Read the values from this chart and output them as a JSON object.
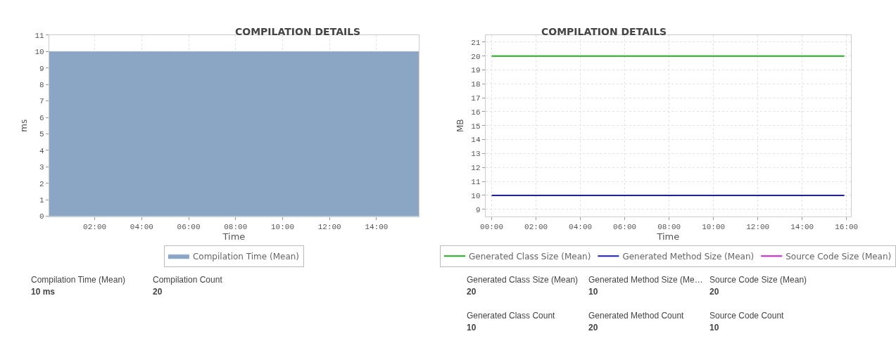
{
  "chart_data": [
    {
      "type": "area",
      "title": "COMPILATION DETAILS",
      "xlabel": "Time",
      "ylabel": "ms",
      "x": [
        0.06,
        15.8
      ],
      "series": [
        {
          "name": "Compilation Time (Mean)",
          "color": "#8ba6c4",
          "values": [
            10,
            10
          ]
        }
      ],
      "xlim": [
        0.06,
        15.8
      ],
      "xticks": [
        {
          "value": 2,
          "label": "02:00"
        },
        {
          "value": 4,
          "label": "04:00"
        },
        {
          "value": 6,
          "label": "06:00"
        },
        {
          "value": 8,
          "label": "08:00"
        },
        {
          "value": 10,
          "label": "10:00"
        },
        {
          "value": 12,
          "label": "12:00"
        },
        {
          "value": 14,
          "label": "14:00"
        }
      ],
      "ylim": [
        0,
        11
      ],
      "yticks": [
        0,
        1,
        2,
        3,
        4,
        5,
        6,
        7,
        8,
        9,
        10,
        11
      ],
      "grid": true,
      "legend": "bottom",
      "annotations": [
        "Compilation Time (Mean)",
        "10 ms",
        "Compilation Count",
        "20"
      ]
    },
    {
      "type": "line",
      "title": "COMPILATION DETAILS",
      "xlabel": "Time",
      "ylabel": "MB",
      "x": [
        0,
        15.9
      ],
      "series": [
        {
          "name": "Generated Class Size (Mean)",
          "color": "#22aa22",
          "values": [
            20,
            20
          ]
        },
        {
          "name": "Generated Method Size (Mean)",
          "color": "#1a1acc",
          "values": [
            10,
            10
          ]
        },
        {
          "name": "Source Code Size (Mean)",
          "color": "#cc22cc",
          "values": [
            null,
            null
          ]
        }
      ],
      "xlim": [
        -0.28,
        16.2
      ],
      "xticks": [
        {
          "value": 0,
          "label": "00:00"
        },
        {
          "value": 2,
          "label": "02:00"
        },
        {
          "value": 4,
          "label": "04:00"
        },
        {
          "value": 6,
          "label": "06:00"
        },
        {
          "value": 8,
          "label": "08:00"
        },
        {
          "value": 10,
          "label": "10:00"
        },
        {
          "value": 12,
          "label": "12:00"
        },
        {
          "value": 14,
          "label": "14:00"
        },
        {
          "value": 16,
          "label": "16:00"
        }
      ],
      "ylim": [
        8.5,
        21.5
      ],
      "yticks": [
        9,
        10,
        11,
        12,
        13,
        14,
        15,
        16,
        17,
        18,
        19,
        20,
        21
      ],
      "grid": true,
      "legend": "bottom",
      "marker": "none",
      "line_style": "solid",
      "annotations": [
        "Generated Class Size (Mean)",
        "20",
        "Generated Method Size (Me…",
        "10",
        "Source Code Size (Mean)",
        "20",
        "Generated Class Count",
        "10",
        "Generated Method Count",
        "20",
        "Source Code Count",
        "10"
      ]
    }
  ]
}
